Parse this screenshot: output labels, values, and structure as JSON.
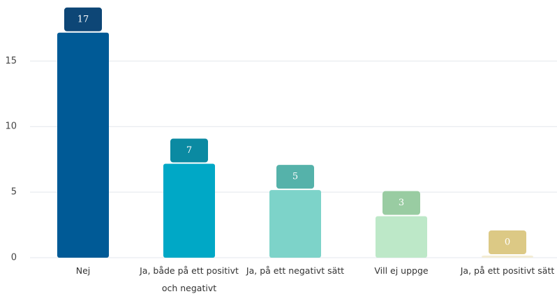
{
  "chart_data": {
    "type": "bar",
    "categories": [
      "Nej",
      "Ja, både på ett positivt och negativt",
      "Ja, på ett negativt sätt",
      "Vill ej uppge",
      "Ja, på ett positivt sätt"
    ],
    "values": [
      17,
      7,
      5,
      3,
      0
    ],
    "colors": [
      "#005a96",
      "#00a8c6",
      "#7dd3c9",
      "#bde8c8",
      "#f3ecd4"
    ],
    "label_colors": [
      "#0d4676",
      "#0b8aa2",
      "#55b2aa",
      "#99cca2",
      "#dcc985"
    ],
    "ylim": [
      0,
      18
    ],
    "yticks": [
      0,
      5,
      10,
      15
    ],
    "grid": true
  }
}
